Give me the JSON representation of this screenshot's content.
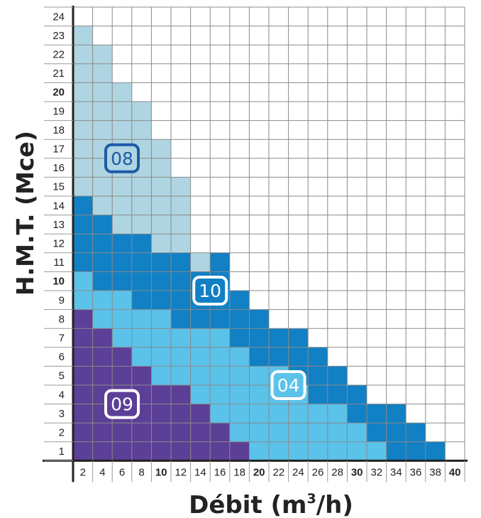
{
  "chart_data": {
    "type": "heatmap",
    "xlabel": "Débit (m³/h)",
    "xlabel_base": "Débit (m",
    "xlabel_sup": "3",
    "xlabel_tail": "/h)",
    "ylabel": "H.M.T. (Mce)",
    "x_ticks": [
      2,
      4,
      6,
      8,
      10,
      12,
      14,
      16,
      18,
      20,
      22,
      24,
      26,
      28,
      30,
      32,
      34,
      36,
      38,
      40
    ],
    "x_bold_ticks": [
      10,
      20,
      30,
      40
    ],
    "y_ticks": [
      1,
      2,
      3,
      4,
      5,
      6,
      7,
      8,
      9,
      10,
      11,
      12,
      13,
      14,
      15,
      16,
      17,
      18,
      19,
      20,
      21,
      22,
      23,
      24
    ],
    "y_bold_ticks": [
      10,
      20
    ],
    "grid": true,
    "series": [
      {
        "name": "08",
        "color": "#afd5e2",
        "label_position": {
          "x": 6,
          "y": 16.5
        },
        "label_style": "light"
      },
      {
        "name": "10",
        "color": "#1180c4",
        "label_position": {
          "x": 15,
          "y": 9.5
        },
        "label_style": "dark"
      },
      {
        "name": "04",
        "color": "#5bc2ea",
        "label_position": {
          "x": 23,
          "y": 4.5
        },
        "label_style": "dark"
      },
      {
        "name": "09",
        "color": "#5c3f97",
        "label_position": {
          "x": 6,
          "y": 3.5
        },
        "label_style": "dark"
      }
    ],
    "rows": [
      {
        "h": 24,
        "segments": []
      },
      {
        "h": 23,
        "segments": [
          [
            "08",
            1,
            1
          ]
        ]
      },
      {
        "h": 22,
        "segments": [
          [
            "08",
            1,
            2
          ]
        ]
      },
      {
        "h": 21,
        "segments": [
          [
            "08",
            1,
            2
          ]
        ]
      },
      {
        "h": 20,
        "segments": [
          [
            "08",
            1,
            3
          ]
        ]
      },
      {
        "h": 19,
        "segments": [
          [
            "08",
            1,
            4
          ]
        ]
      },
      {
        "h": 18,
        "segments": [
          [
            "08",
            1,
            4
          ]
        ]
      },
      {
        "h": 17,
        "segments": [
          [
            "08",
            1,
            5
          ]
        ]
      },
      {
        "h": 16,
        "segments": [
          [
            "08",
            1,
            5
          ]
        ]
      },
      {
        "h": 15,
        "segments": [
          [
            "08",
            1,
            6
          ]
        ]
      },
      {
        "h": 14,
        "segments": [
          [
            "10",
            1,
            1
          ],
          [
            "08",
            2,
            6
          ]
        ]
      },
      {
        "h": 13,
        "segments": [
          [
            "10",
            1,
            2
          ],
          [
            "08",
            3,
            6
          ]
        ]
      },
      {
        "h": 12,
        "segments": [
          [
            "10",
            1,
            4
          ],
          [
            "08",
            5,
            6
          ]
        ]
      },
      {
        "h": 11,
        "segments": [
          [
            "10",
            1,
            4
          ],
          [
            "10",
            5,
            6
          ],
          [
            "08",
            7,
            7
          ],
          [
            "10",
            8,
            8
          ]
        ]
      },
      {
        "h": 10,
        "segments": [
          [
            "04",
            1,
            1
          ],
          [
            "10",
            2,
            8
          ]
        ]
      },
      {
        "h": 9,
        "segments": [
          [
            "04",
            1,
            3
          ],
          [
            "10",
            4,
            9
          ]
        ]
      },
      {
        "h": 8,
        "segments": [
          [
            "09",
            1,
            1
          ],
          [
            "04",
            2,
            5
          ],
          [
            "10",
            6,
            10
          ]
        ]
      },
      {
        "h": 7,
        "segments": [
          [
            "09",
            1,
            2
          ],
          [
            "04",
            3,
            8
          ],
          [
            "10",
            9,
            12
          ]
        ]
      },
      {
        "h": 6,
        "segments": [
          [
            "09",
            1,
            3
          ],
          [
            "04",
            4,
            9
          ],
          [
            "10",
            10,
            13
          ]
        ]
      },
      {
        "h": 5,
        "segments": [
          [
            "09",
            1,
            4
          ],
          [
            "04",
            5,
            11
          ],
          [
            "10",
            12,
            14
          ]
        ]
      },
      {
        "h": 4,
        "segments": [
          [
            "09",
            1,
            6
          ],
          [
            "04",
            7,
            12
          ],
          [
            "10",
            13,
            15
          ]
        ]
      },
      {
        "h": 3,
        "segments": [
          [
            "09",
            1,
            7
          ],
          [
            "04",
            8,
            14
          ],
          [
            "10",
            15,
            17
          ]
        ]
      },
      {
        "h": 2,
        "segments": [
          [
            "09",
            1,
            8
          ],
          [
            "04",
            9,
            15
          ],
          [
            "10",
            16,
            18
          ]
        ]
      },
      {
        "h": 1,
        "segments": [
          [
            "09",
            1,
            9
          ],
          [
            "04",
            10,
            16
          ],
          [
            "10",
            17,
            19
          ]
        ]
      }
    ]
  }
}
